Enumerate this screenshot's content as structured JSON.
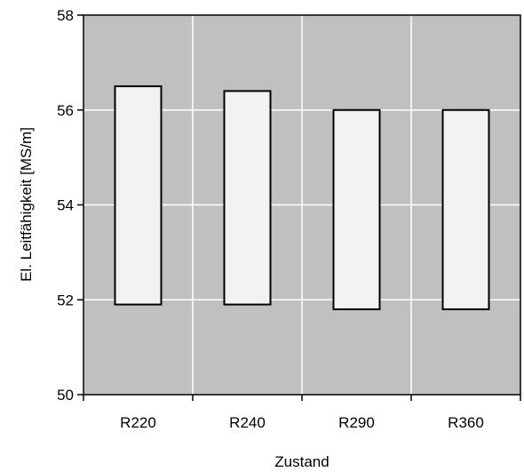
{
  "chart_data": {
    "type": "bar",
    "subtype": "floating-range",
    "title": "",
    "xlabel": "Zustand",
    "ylabel": "El. Leitfähigkeit [MS/m]",
    "categories": [
      "R220",
      "R240",
      "R290",
      "R360"
    ],
    "ranges": [
      {
        "low": 51.9,
        "high": 56.5
      },
      {
        "low": 51.9,
        "high": 56.4
      },
      {
        "low": 51.8,
        "high": 56.0
      },
      {
        "low": 51.8,
        "high": 56.0
      }
    ],
    "ylim": [
      50,
      58
    ],
    "yticks": [
      50,
      52,
      54,
      56,
      58
    ],
    "grid": "horizontal and vertical, white",
    "legend": "none",
    "colors": {
      "plot_background": "#c0c0c0",
      "bar_fill": "#f2f2f2",
      "bar_stroke": "#000000",
      "grid": "#ffffff"
    }
  }
}
